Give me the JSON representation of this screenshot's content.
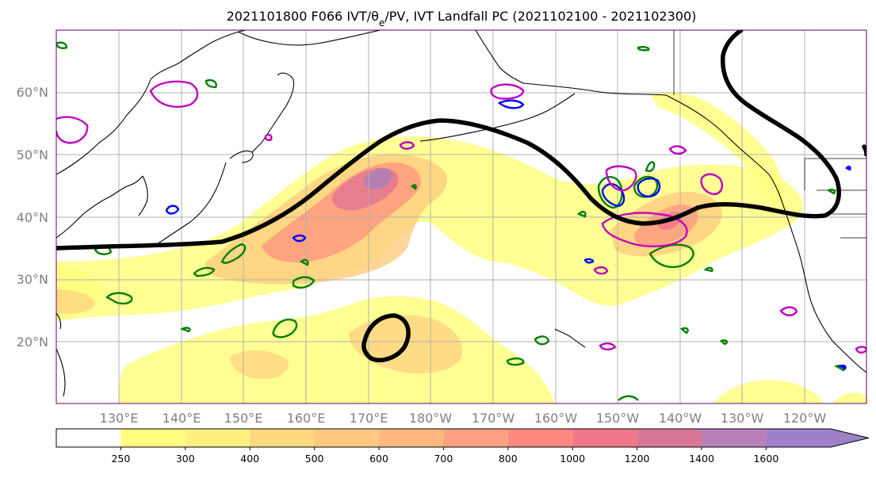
{
  "title": "2021101800 F066 IVT/θe/PV, IVT Landfall PC (2021102100 - 2021102300)",
  "map": {
    "lat_labels": [
      "60°N",
      "50°N",
      "40°N",
      "30°N",
      "20°N"
    ],
    "lon_labels": [
      "130°E",
      "140°E",
      "150°E",
      "160°E",
      "170°E",
      "180°W",
      "170°W",
      "160°W",
      "150°W",
      "140°W",
      "130°W",
      "120°W"
    ],
    "colors": {
      "land_outline": "#000000",
      "grid": "#b0b0b0",
      "theta_e_contour": "#008000",
      "pv_contour_blue": "#0000ff",
      "pv_contour_magenta": "#c000c0",
      "landfall_pc_contour": "#000000"
    }
  },
  "colorbar": {
    "levels": [
      "250",
      "300",
      "400",
      "500",
      "600",
      "700",
      "800",
      "1000",
      "1200",
      "1400",
      "1600"
    ],
    "colors": [
      "#ffffff",
      "#ffff80",
      "#fff080",
      "#ffd880",
      "#ffc880",
      "#ffb880",
      "#ffa080",
      "#ff8880",
      "#f07888",
      "#d87898",
      "#b880b8",
      "#a080c8"
    ],
    "extend": "max"
  }
}
